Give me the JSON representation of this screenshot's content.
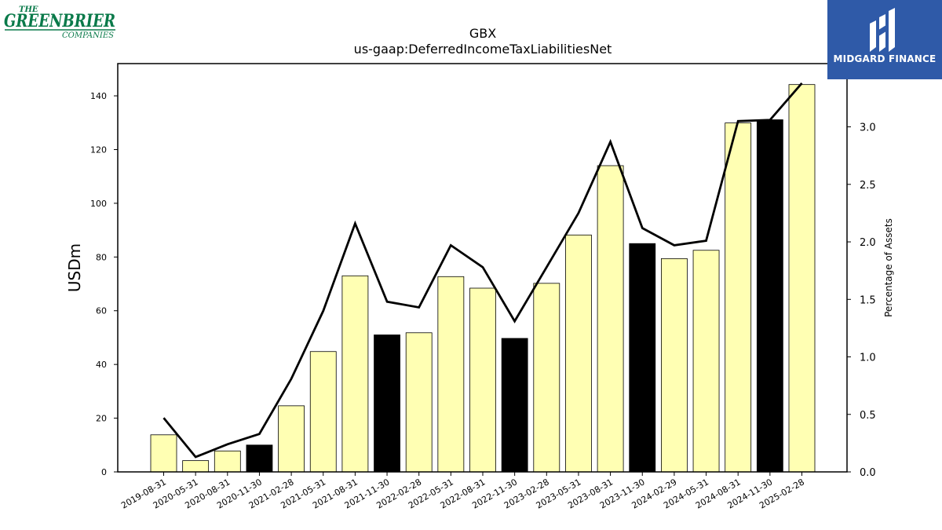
{
  "logos": {
    "left": {
      "line1": "THE",
      "line2": "GREENBRIER",
      "line3": "COMPANIES",
      "color": "#0a7a4a"
    },
    "right": {
      "text": "MIDGARD FINANCE",
      "background": "#2f5aa8"
    }
  },
  "chart_data": {
    "type": "bar",
    "title": "GBX",
    "subtitle": "us-gaap:DeferredIncomeTaxLiabilitiesNet",
    "ylabel": "USDm",
    "y2label": "Percentage of Assets",
    "ylim": [
      0,
      152
    ],
    "y2lim": [
      0,
      3.55
    ],
    "yticks": [
      0,
      20,
      40,
      60,
      80,
      100,
      120,
      140
    ],
    "y2ticks": [
      0.0,
      0.5,
      1.0,
      1.5,
      2.0,
      2.5,
      3.0
    ],
    "grid": false,
    "categories": [
      "2019-08-31",
      "2020-05-31",
      "2020-08-31",
      "2020-11-30",
      "2021-02-28",
      "2021-05-31",
      "2021-08-31",
      "2021-11-30",
      "2022-02-28",
      "2022-05-31",
      "2022-08-31",
      "2022-11-30",
      "2023-02-28",
      "2023-05-31",
      "2023-08-31",
      "2023-11-30",
      "2024-02-29",
      "2024-05-31",
      "2024-08-31",
      "2024-11-30",
      "2025-02-28"
    ],
    "series": [
      {
        "type": "bar",
        "values": [
          13.8,
          4.2,
          7.8,
          10.0,
          24.6,
          44.8,
          73.0,
          51.0,
          51.8,
          72.7,
          68.4,
          49.7,
          70.2,
          88.2,
          114.0,
          85.0,
          79.4,
          82.5,
          129.9,
          131.1,
          144.2
        ],
        "colors": [
          "#ffffb3",
          "#ffffb3",
          "#ffffb3",
          "#000000",
          "#ffffb3",
          "#ffffb3",
          "#ffffb3",
          "#000000",
          "#ffffb3",
          "#ffffb3",
          "#ffffb3",
          "#000000",
          "#ffffb3",
          "#ffffb3",
          "#ffffb3",
          "#000000",
          "#ffffb3",
          "#ffffb3",
          "#ffffb3",
          "#000000",
          "#ffffb3"
        ]
      },
      {
        "type": "line",
        "axis": "right",
        "color": "#000000",
        "values": [
          0.47,
          0.13,
          0.24,
          0.33,
          0.81,
          1.4,
          2.16,
          1.48,
          1.43,
          1.97,
          1.78,
          1.31,
          1.78,
          2.25,
          2.87,
          2.12,
          1.97,
          2.01,
          3.05,
          3.06,
          3.38
        ]
      }
    ]
  }
}
